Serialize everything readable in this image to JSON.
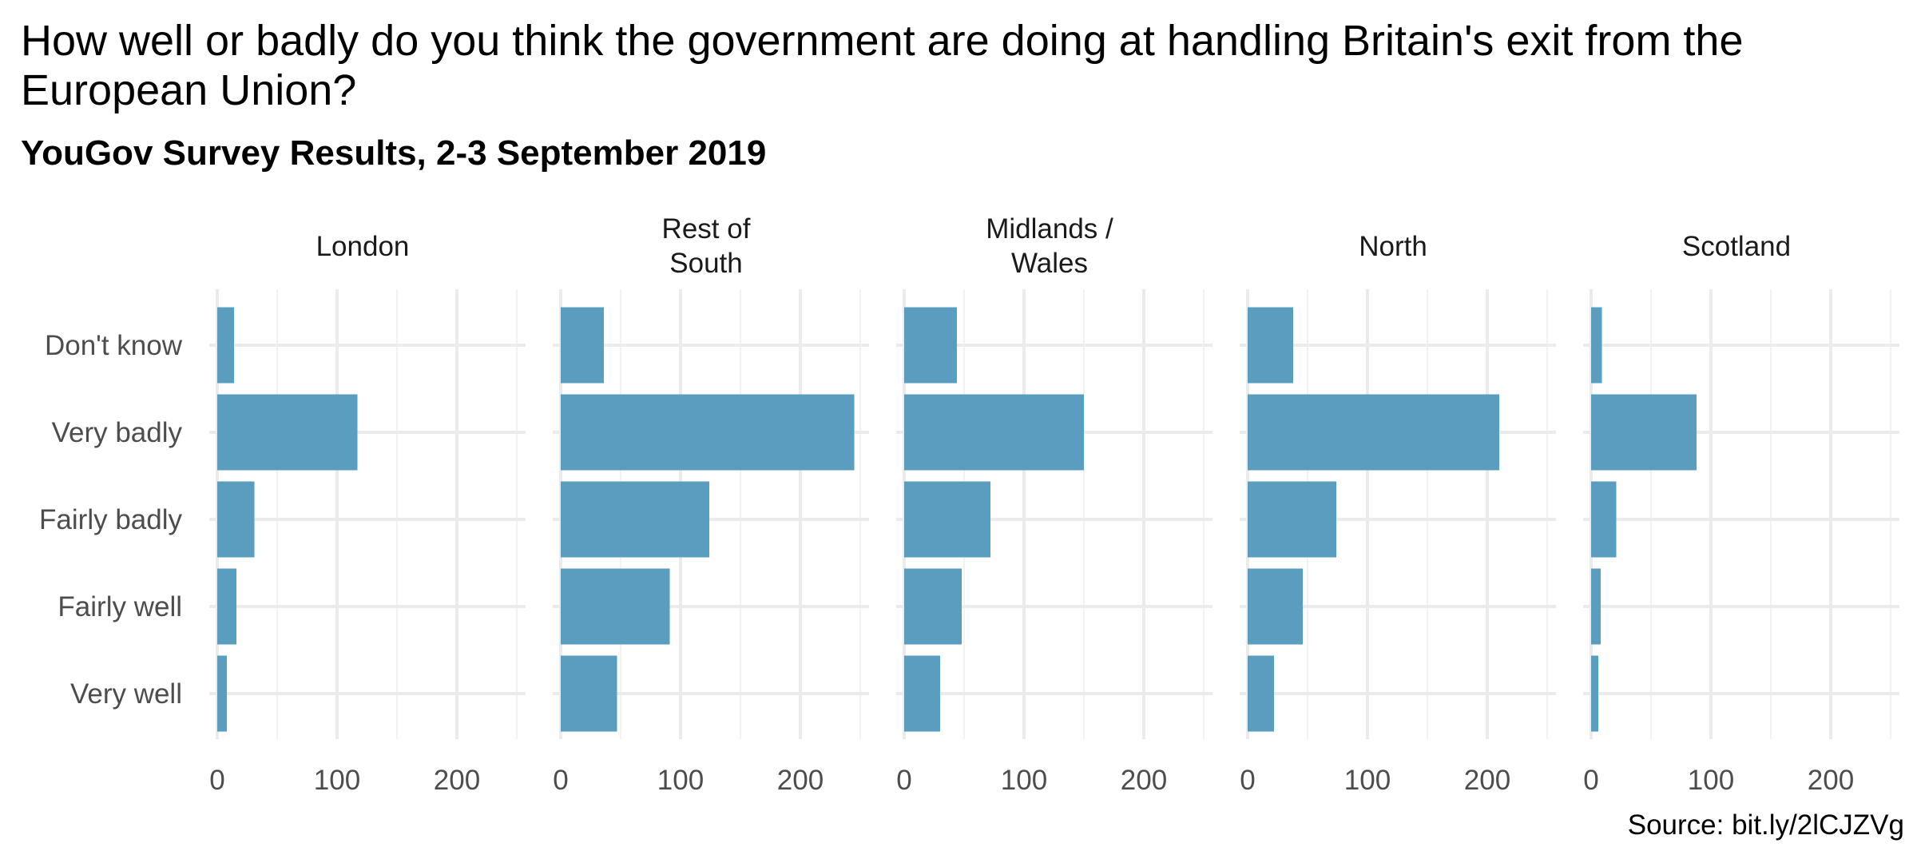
{
  "chart_data": {
    "type": "bar",
    "orientation": "horizontal",
    "title": "How well or badly do you think the government are doing at handling Britain's exit from the European Union?",
    "subtitle": "YouGov Survey Results, 2-3 September 2019",
    "caption": "Source: bit.ly/2lCJZVg",
    "bar_color": "#5b9dbf",
    "grid": true,
    "xlim": [
      0,
      260
    ],
    "x_ticks": [
      0,
      100,
      200
    ],
    "categories": [
      "Don't know",
      "Very badly",
      "Fairly badly",
      "Fairly well",
      "Very well"
    ],
    "facets": [
      {
        "name": "London",
        "label_lines": [
          "London"
        ],
        "values": [
          14,
          117,
          31,
          16,
          8
        ]
      },
      {
        "name": "Rest of South",
        "label_lines": [
          "Rest of",
          "South"
        ],
        "values": [
          36,
          245,
          124,
          91,
          47
        ]
      },
      {
        "name": "Midlands / Wales",
        "label_lines": [
          "Midlands /",
          "Wales"
        ],
        "values": [
          44,
          150,
          72,
          48,
          30
        ]
      },
      {
        "name": "North",
        "label_lines": [
          "North"
        ],
        "values": [
          38,
          210,
          74,
          46,
          22
        ]
      },
      {
        "name": "Scotland",
        "label_lines": [
          "Scotland"
        ],
        "values": [
          9,
          88,
          21,
          8,
          6
        ]
      }
    ]
  }
}
